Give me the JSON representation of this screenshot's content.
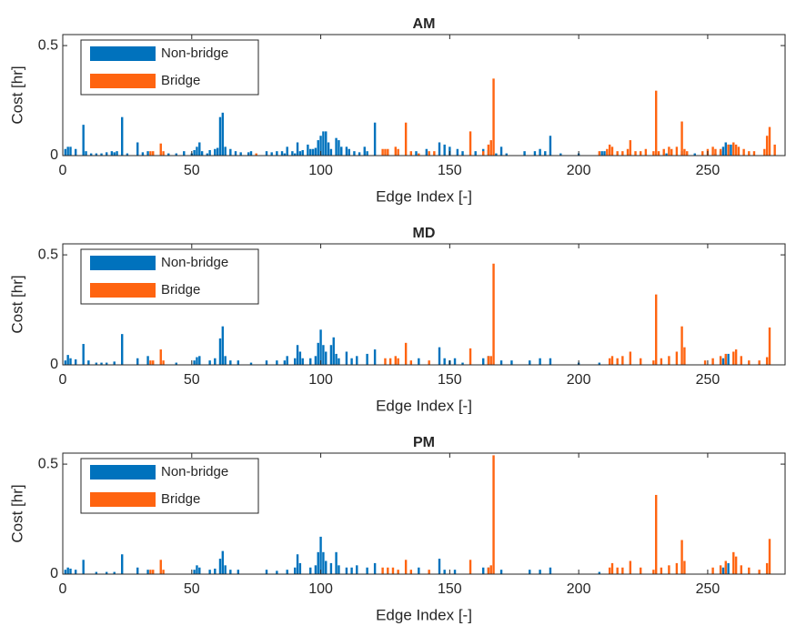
{
  "chart_data": [
    {
      "type": "bar",
      "title": "AM",
      "xlabel": "Edge Index [-]",
      "ylabel": "Cost [hr]",
      "xlim": [
        0,
        280
      ],
      "ylim": [
        0,
        0.55
      ],
      "xticks": [
        0,
        50,
        100,
        150,
        200,
        250
      ],
      "yticks": [
        0,
        0.5
      ],
      "legend": "northwest",
      "series": [
        {
          "name": "Non-bridge",
          "color": "#0072bd",
          "x": [
            1,
            2,
            3,
            5,
            8,
            9,
            11,
            13,
            15,
            17,
            19,
            20,
            21,
            23,
            25,
            29,
            31,
            33,
            41,
            44,
            47,
            50,
            51,
            52,
            53,
            54,
            56,
            57,
            59,
            60,
            61,
            62,
            63,
            65,
            67,
            69,
            72,
            73,
            79,
            81,
            83,
            85,
            86,
            87,
            89,
            90,
            91,
            92,
            93,
            95,
            96,
            97,
            98,
            99,
            100,
            101,
            102,
            103,
            104,
            106,
            107,
            108,
            110,
            111,
            113,
            115,
            117,
            118,
            121,
            137,
            141,
            146,
            148,
            150,
            153,
            155,
            160,
            163,
            165,
            168,
            170,
            172,
            179,
            183,
            185,
            187,
            189,
            193,
            200,
            209,
            210,
            220,
            234,
            240,
            245,
            253,
            255,
            256,
            257,
            258,
            259
          ],
          "values": [
            0.03,
            0.04,
            0.04,
            0.03,
            0.14,
            0.02,
            0.01,
            0.01,
            0.01,
            0.015,
            0.02,
            0.015,
            0.02,
            0.175,
            0.01,
            0.06,
            0.015,
            0.02,
            0.01,
            0.01,
            0.02,
            0.01,
            0.025,
            0.04,
            0.06,
            0.02,
            0.01,
            0.025,
            0.03,
            0.035,
            0.175,
            0.195,
            0.04,
            0.03,
            0.02,
            0.015,
            0.015,
            0.02,
            0.02,
            0.015,
            0.02,
            0.02,
            0.01,
            0.04,
            0.02,
            0.01,
            0.06,
            0.02,
            0.025,
            0.05,
            0.03,
            0.03,
            0.035,
            0.07,
            0.09,
            0.11,
            0.11,
            0.06,
            0.03,
            0.08,
            0.07,
            0.04,
            0.04,
            0.03,
            0.02,
            0.015,
            0.04,
            0.02,
            0.15,
            0.02,
            0.03,
            0.06,
            0.05,
            0.04,
            0.03,
            0.02,
            0.02,
            0.03,
            0.025,
            0.01,
            0.04,
            0.01,
            0.02,
            0.02,
            0.03,
            0.02,
            0.09,
            0.01,
            0.01,
            0.02,
            0.02,
            0.01,
            0.01,
            0.02,
            0.01,
            0.01,
            0.02,
            0.04,
            0.06,
            0.05,
            0.05
          ]
        },
        {
          "name": "Bridge",
          "color": "#ff6410",
          "x": [
            34,
            35,
            38,
            39,
            75,
            124,
            125,
            126,
            129,
            130,
            133,
            135,
            138,
            142,
            144,
            158,
            163,
            165,
            166,
            167,
            208,
            211,
            212,
            213,
            215,
            217,
            219,
            220,
            222,
            224,
            226,
            229,
            230,
            231,
            233,
            235,
            236,
            238,
            240,
            241,
            242,
            248,
            250,
            252,
            253,
            255,
            258,
            260,
            261,
            262,
            264,
            266,
            268,
            272,
            273,
            274,
            276
          ],
          "values": [
            0.02,
            0.02,
            0.055,
            0.02,
            0.01,
            0.03,
            0.03,
            0.03,
            0.04,
            0.03,
            0.15,
            0.02,
            0.01,
            0.02,
            0.02,
            0.11,
            0.02,
            0.05,
            0.07,
            0.35,
            0.02,
            0.03,
            0.05,
            0.04,
            0.02,
            0.02,
            0.03,
            0.07,
            0.02,
            0.02,
            0.03,
            0.02,
            0.295,
            0.02,
            0.03,
            0.04,
            0.03,
            0.04,
            0.155,
            0.03,
            0.02,
            0.02,
            0.03,
            0.04,
            0.03,
            0.03,
            0.05,
            0.06,
            0.05,
            0.04,
            0.03,
            0.02,
            0.02,
            0.03,
            0.09,
            0.13,
            0.05
          ]
        }
      ]
    },
    {
      "type": "bar",
      "title": "MD",
      "xlabel": "Edge Index [-]",
      "ylabel": "Cost [hr]",
      "xlim": [
        0,
        280
      ],
      "ylim": [
        0,
        0.55
      ],
      "xticks": [
        0,
        50,
        100,
        150,
        200,
        250
      ],
      "yticks": [
        0,
        0.5
      ],
      "legend": "northwest",
      "series": [
        {
          "name": "Non-bridge",
          "color": "#0072bd",
          "x": [
            1,
            2,
            3,
            5,
            8,
            10,
            13,
            15,
            17,
            20,
            23,
            29,
            33,
            44,
            51,
            52,
            53,
            57,
            59,
            61,
            62,
            63,
            65,
            68,
            73,
            79,
            83,
            86,
            87,
            90,
            91,
            92,
            93,
            96,
            98,
            99,
            100,
            101,
            102,
            104,
            105,
            106,
            107,
            110,
            112,
            114,
            118,
            121,
            138,
            146,
            148,
            150,
            152,
            155,
            163,
            165,
            170,
            174,
            181,
            185,
            189,
            200,
            208,
            256,
            257,
            258
          ],
          "values": [
            0.02,
            0.045,
            0.03,
            0.025,
            0.095,
            0.02,
            0.01,
            0.01,
            0.01,
            0.015,
            0.14,
            0.03,
            0.04,
            0.01,
            0.02,
            0.035,
            0.04,
            0.02,
            0.03,
            0.12,
            0.175,
            0.04,
            0.02,
            0.02,
            0.01,
            0.02,
            0.02,
            0.02,
            0.04,
            0.03,
            0.09,
            0.06,
            0.03,
            0.03,
            0.04,
            0.1,
            0.16,
            0.09,
            0.06,
            0.09,
            0.125,
            0.05,
            0.03,
            0.06,
            0.03,
            0.04,
            0.05,
            0.07,
            0.03,
            0.08,
            0.03,
            0.02,
            0.03,
            0.01,
            0.03,
            0.04,
            0.02,
            0.02,
            0.02,
            0.03,
            0.03,
            0.01,
            0.01,
            0.03,
            0.04,
            0.05
          ]
        },
        {
          "name": "Bridge",
          "color": "#ff6410",
          "x": [
            34,
            35,
            38,
            39,
            125,
            127,
            129,
            130,
            133,
            135,
            142,
            158,
            165,
            166,
            167,
            212,
            213,
            215,
            217,
            220,
            224,
            229,
            230,
            232,
            235,
            238,
            240,
            241,
            249,
            252,
            255,
            257,
            260,
            261,
            263,
            266,
            270,
            273,
            274
          ],
          "values": [
            0.02,
            0.02,
            0.07,
            0.02,
            0.03,
            0.03,
            0.04,
            0.03,
            0.1,
            0.02,
            0.02,
            0.075,
            0.04,
            0.04,
            0.46,
            0.03,
            0.04,
            0.03,
            0.04,
            0.06,
            0.03,
            0.02,
            0.32,
            0.03,
            0.04,
            0.06,
            0.175,
            0.08,
            0.02,
            0.03,
            0.04,
            0.05,
            0.06,
            0.07,
            0.04,
            0.02,
            0.02,
            0.035,
            0.17
          ]
        }
      ]
    },
    {
      "type": "bar",
      "title": "PM",
      "xlabel": "Edge Index [-]",
      "ylabel": "Cost [hr]",
      "xlim": [
        0,
        280
      ],
      "ylim": [
        0,
        0.55
      ],
      "xticks": [
        0,
        50,
        100,
        150,
        200,
        250
      ],
      "yticks": [
        0,
        0.5
      ],
      "legend": "northwest",
      "series": [
        {
          "name": "Non-bridge",
          "color": "#0072bd",
          "x": [
            1,
            2,
            3,
            5,
            8,
            13,
            17,
            20,
            23,
            29,
            33,
            51,
            52,
            53,
            57,
            59,
            61,
            62,
            63,
            65,
            68,
            79,
            83,
            87,
            90,
            91,
            92,
            96,
            98,
            99,
            100,
            101,
            102,
            104,
            106,
            107,
            110,
            112,
            114,
            118,
            121,
            138,
            146,
            148,
            152,
            163,
            165,
            170,
            181,
            185,
            189,
            208,
            256,
            257,
            258
          ],
          "values": [
            0.02,
            0.03,
            0.025,
            0.02,
            0.065,
            0.01,
            0.01,
            0.01,
            0.09,
            0.03,
            0.02,
            0.02,
            0.04,
            0.03,
            0.02,
            0.025,
            0.07,
            0.105,
            0.04,
            0.02,
            0.02,
            0.02,
            0.015,
            0.02,
            0.03,
            0.09,
            0.05,
            0.03,
            0.04,
            0.1,
            0.17,
            0.1,
            0.06,
            0.05,
            0.1,
            0.04,
            0.03,
            0.03,
            0.04,
            0.03,
            0.05,
            0.03,
            0.07,
            0.02,
            0.02,
            0.03,
            0.03,
            0.02,
            0.02,
            0.02,
            0.03,
            0.01,
            0.03,
            0.04,
            0.05
          ]
        },
        {
          "name": "Bridge",
          "color": "#ff6410",
          "x": [
            34,
            35,
            38,
            39,
            124,
            126,
            128,
            130,
            133,
            135,
            142,
            158,
            165,
            166,
            167,
            212,
            213,
            215,
            217,
            220,
            224,
            229,
            230,
            232,
            235,
            238,
            240,
            241,
            252,
            255,
            257,
            260,
            261,
            263,
            266,
            270,
            273,
            274
          ],
          "values": [
            0.02,
            0.02,
            0.065,
            0.02,
            0.03,
            0.03,
            0.03,
            0.02,
            0.065,
            0.02,
            0.02,
            0.065,
            0.03,
            0.04,
            0.54,
            0.03,
            0.05,
            0.03,
            0.03,
            0.06,
            0.03,
            0.02,
            0.36,
            0.03,
            0.04,
            0.05,
            0.155,
            0.06,
            0.03,
            0.04,
            0.06,
            0.1,
            0.08,
            0.04,
            0.03,
            0.02,
            0.05,
            0.16
          ]
        }
      ]
    }
  ]
}
